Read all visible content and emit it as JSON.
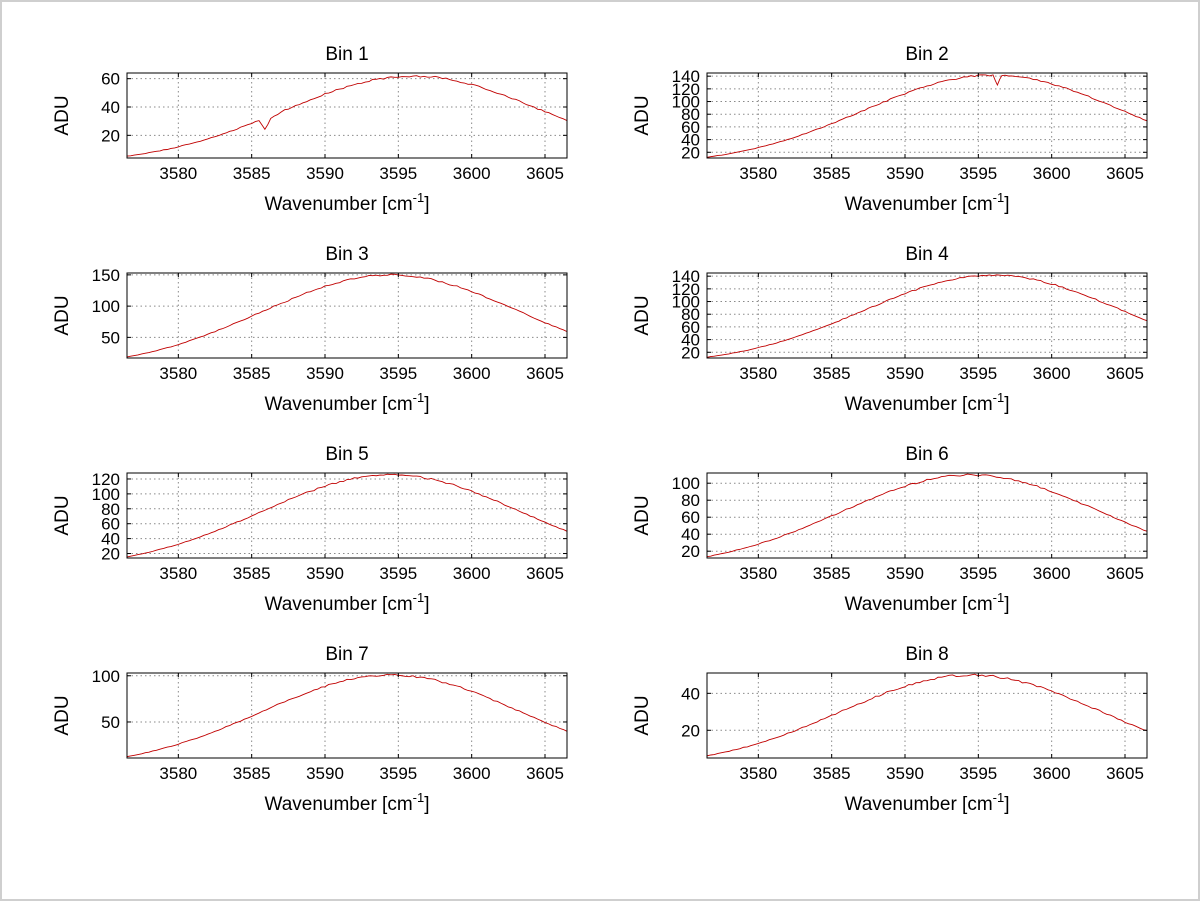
{
  "window": {
    "background": "#ffffff",
    "border_color": "#cfcfcf"
  },
  "style": {
    "line_color": "#c00000",
    "grid_color": "#8a8a8a",
    "axis_color": "#000000",
    "text_color": "#000000"
  },
  "axis_labels": {
    "y": "ADU",
    "x_prefix": "Wavenumber [cm",
    "x_superscript": "-1",
    "x_suffix": "]"
  },
  "x_axis": {
    "lim": [
      3576.5,
      3606.5
    ],
    "ticks": [
      3580,
      3585,
      3590,
      3595,
      3600,
      3605
    ]
  },
  "chart_data": [
    {
      "type": "line",
      "title": "Bin 1",
      "xlabel": "Wavenumber [cm-1]",
      "ylabel": "ADU",
      "ylim": [
        4,
        64
      ],
      "yticks": [
        20,
        40,
        60
      ],
      "points": [
        [
          3576.5,
          5.3
        ],
        [
          3578,
          7.7
        ],
        [
          3579.5,
          10.7
        ],
        [
          3581,
          14.5
        ],
        [
          3582.5,
          19.1
        ],
        [
          3584,
          24.5
        ],
        [
          3585.5,
          30.4
        ],
        [
          3585.9,
          24.0
        ],
        [
          3586.3,
          31.6
        ],
        [
          3587,
          36.7
        ],
        [
          3588.5,
          43.1
        ],
        [
          3590,
          49.1
        ],
        [
          3591.5,
          54.4
        ],
        [
          3593,
          58.5
        ],
        [
          3594.5,
          61.1
        ],
        [
          3596,
          62.0
        ],
        [
          3597.5,
          61.1
        ],
        [
          3599,
          58.5
        ],
        [
          3600.5,
          54.4
        ],
        [
          3602,
          49.1
        ],
        [
          3603.5,
          43.1
        ],
        [
          3605,
          36.7
        ],
        [
          3606.5,
          30.4
        ]
      ]
    },
    {
      "type": "line",
      "title": "Bin 2",
      "xlabel": "Wavenumber [cm-1]",
      "ylabel": "ADU",
      "ylim": [
        11,
        145
      ],
      "yticks": [
        20,
        40,
        60,
        80,
        100,
        120,
        140
      ],
      "points": [
        [
          3576.5,
          12.2
        ],
        [
          3578,
          17.5
        ],
        [
          3579.5,
          24.4
        ],
        [
          3581,
          33.2
        ],
        [
          3582.5,
          43.7
        ],
        [
          3584,
          56.1
        ],
        [
          3585.5,
          69.7
        ],
        [
          3587,
          84.2
        ],
        [
          3588.5,
          98.7
        ],
        [
          3590,
          112.6
        ],
        [
          3591.5,
          124.6
        ],
        [
          3593,
          134.0
        ],
        [
          3594.5,
          140.0
        ],
        [
          3596,
          142.0
        ],
        [
          3596.3,
          127.0
        ],
        [
          3596.6,
          141.5
        ],
        [
          3597.5,
          140.0
        ],
        [
          3599,
          134.0
        ],
        [
          3600.5,
          124.6
        ],
        [
          3602,
          112.6
        ],
        [
          3603.5,
          98.7
        ],
        [
          3605,
          84.2
        ],
        [
          3606.5,
          69.7
        ]
      ]
    },
    {
      "type": "line",
      "title": "Bin 3",
      "xlabel": "Wavenumber [cm-1]",
      "ylabel": "ADU",
      "ylim": [
        17,
        153
      ],
      "yticks": [
        50,
        100,
        150
      ],
      "points": [
        [
          3576.5,
          18.5
        ],
        [
          3578,
          25.8
        ],
        [
          3579.5,
          35.1
        ],
        [
          3581,
          46.2
        ],
        [
          3582.5,
          59.3
        ],
        [
          3584,
          73.7
        ],
        [
          3585.5,
          89.0
        ],
        [
          3587,
          104.3
        ],
        [
          3588.5,
          118.9
        ],
        [
          3590,
          131.7
        ],
        [
          3591.5,
          141.6
        ],
        [
          3593,
          147.9
        ],
        [
          3594.5,
          150.0
        ],
        [
          3596,
          147.9
        ],
        [
          3597.5,
          141.6
        ],
        [
          3599,
          131.7
        ],
        [
          3600.5,
          118.9
        ],
        [
          3602,
          104.3
        ],
        [
          3603.5,
          89.0
        ],
        [
          3605,
          73.7
        ],
        [
          3606.5,
          59.3
        ]
      ]
    },
    {
      "type": "line",
      "title": "Bin 4",
      "xlabel": "Wavenumber [cm-1]",
      "ylabel": "ADU",
      "ylim": [
        11,
        145
      ],
      "yticks": [
        20,
        40,
        60,
        80,
        100,
        120,
        140
      ],
      "points": [
        [
          3576.5,
          12.2
        ],
        [
          3578,
          17.5
        ],
        [
          3579.5,
          24.4
        ],
        [
          3581,
          33.2
        ],
        [
          3582.5,
          43.7
        ],
        [
          3584,
          56.1
        ],
        [
          3585.5,
          69.7
        ],
        [
          3587,
          84.2
        ],
        [
          3588.5,
          98.7
        ],
        [
          3590,
          112.6
        ],
        [
          3591.5,
          124.6
        ],
        [
          3593,
          134.0
        ],
        [
          3594.5,
          140.0
        ],
        [
          3596,
          142.0
        ],
        [
          3597.5,
          140.0
        ],
        [
          3599,
          134.0
        ],
        [
          3600.5,
          124.6
        ],
        [
          3602,
          112.6
        ],
        [
          3603.5,
          98.7
        ],
        [
          3605,
          84.2
        ],
        [
          3606.5,
          69.7
        ]
      ]
    },
    {
      "type": "line",
      "title": "Bin 5",
      "xlabel": "Wavenumber [cm-1]",
      "ylabel": "ADU",
      "ylim": [
        14,
        128
      ],
      "yticks": [
        20,
        40,
        60,
        80,
        100,
        120
      ],
      "points": [
        [
          3576.5,
          15.5
        ],
        [
          3578,
          21.7
        ],
        [
          3579.5,
          29.5
        ],
        [
          3581,
          38.8
        ],
        [
          3582.5,
          49.8
        ],
        [
          3584,
          61.9
        ],
        [
          3585.5,
          74.7
        ],
        [
          3587,
          87.6
        ],
        [
          3588.5,
          99.9
        ],
        [
          3590,
          110.6
        ],
        [
          3591.5,
          118.9
        ],
        [
          3593,
          124.2
        ],
        [
          3594.5,
          126.0
        ],
        [
          3596,
          124.2
        ],
        [
          3597.5,
          118.9
        ],
        [
          3599,
          110.6
        ],
        [
          3600.5,
          99.9
        ],
        [
          3602,
          87.6
        ],
        [
          3603.5,
          74.7
        ],
        [
          3605,
          61.9
        ],
        [
          3606.5,
          49.8
        ]
      ]
    },
    {
      "type": "line",
      "title": "Bin 6",
      "xlabel": "Wavenumber [cm-1]",
      "ylabel": "ADU",
      "ylim": [
        12,
        112
      ],
      "yticks": [
        20,
        40,
        60,
        80,
        100
      ],
      "points": [
        [
          3576.5,
          13.5
        ],
        [
          3578,
          18.9
        ],
        [
          3579.5,
          25.7
        ],
        [
          3581,
          33.9
        ],
        [
          3582.5,
          43.5
        ],
        [
          3584,
          54.0
        ],
        [
          3585.5,
          65.2
        ],
        [
          3587,
          76.5
        ],
        [
          3588.5,
          87.2
        ],
        [
          3590,
          96.6
        ],
        [
          3591.5,
          103.8
        ],
        [
          3593,
          108.5
        ],
        [
          3594.5,
          110.0
        ],
        [
          3596,
          108.5
        ],
        [
          3597.5,
          103.8
        ],
        [
          3599,
          96.6
        ],
        [
          3600.5,
          87.2
        ],
        [
          3602,
          76.5
        ],
        [
          3603.5,
          65.2
        ],
        [
          3605,
          54.0
        ],
        [
          3606.5,
          43.5
        ]
      ]
    },
    {
      "type": "line",
      "title": "Bin 7",
      "xlabel": "Wavenumber [cm-1]",
      "ylabel": "ADU",
      "ylim": [
        11,
        103
      ],
      "yticks": [
        50,
        100
      ],
      "points": [
        [
          3576.5,
          12.4
        ],
        [
          3578,
          17.4
        ],
        [
          3579.5,
          23.6
        ],
        [
          3581,
          31.1
        ],
        [
          3582.5,
          39.9
        ],
        [
          3584,
          49.6
        ],
        [
          3585.5,
          59.9
        ],
        [
          3587,
          70.2
        ],
        [
          3588.5,
          80.1
        ],
        [
          3590,
          88.7
        ],
        [
          3591.5,
          95.3
        ],
        [
          3593,
          99.6
        ],
        [
          3594.5,
          101.0
        ],
        [
          3596,
          99.6
        ],
        [
          3597.5,
          95.3
        ],
        [
          3599,
          88.7
        ],
        [
          3600.5,
          80.1
        ],
        [
          3602,
          70.2
        ],
        [
          3603.5,
          59.9
        ],
        [
          3605,
          49.6
        ],
        [
          3606.5,
          39.9
        ]
      ]
    },
    {
      "type": "line",
      "title": "Bin 8",
      "xlabel": "Wavenumber [cm-1]",
      "ylabel": "ADU",
      "ylim": [
        5,
        51
      ],
      "yticks": [
        20,
        40
      ],
      "points": [
        [
          3576.5,
          6.2
        ],
        [
          3578,
          8.6
        ],
        [
          3579.5,
          11.7
        ],
        [
          3581,
          15.4
        ],
        [
          3582.5,
          19.8
        ],
        [
          3584,
          24.6
        ],
        [
          3585.5,
          29.7
        ],
        [
          3587,
          34.8
        ],
        [
          3588.5,
          39.7
        ],
        [
          3590,
          43.9
        ],
        [
          3591.5,
          47.2
        ],
        [
          3593,
          49.3
        ],
        [
          3594.5,
          50.0
        ],
        [
          3596,
          49.3
        ],
        [
          3597.5,
          47.2
        ],
        [
          3599,
          43.9
        ],
        [
          3600.5,
          39.7
        ],
        [
          3602,
          34.8
        ],
        [
          3603.5,
          29.7
        ],
        [
          3605,
          24.6
        ],
        [
          3606.5,
          19.8
        ]
      ]
    }
  ]
}
